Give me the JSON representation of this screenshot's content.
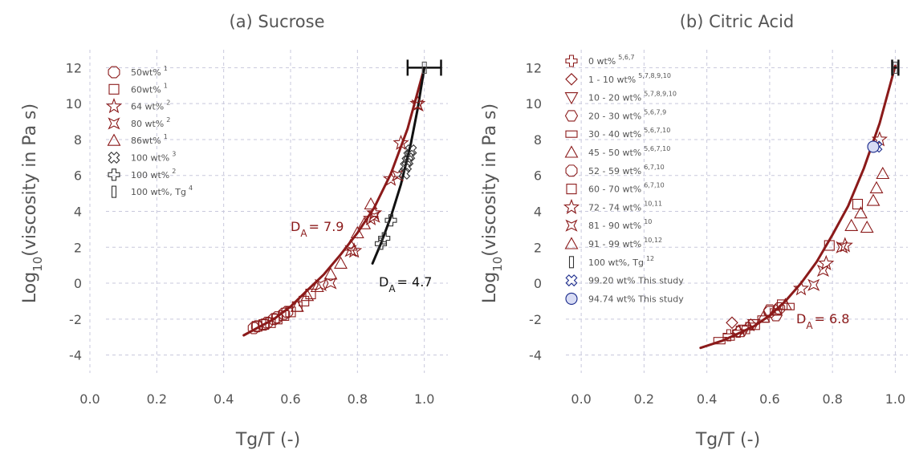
{
  "chart_data": [
    {
      "type": "scatter",
      "title": "(a) Sucrose",
      "xlabel": "Tg/T (-)",
      "ylabel": "Log10(viscosity in Pa s)",
      "xlim": [
        0.0,
        1.08
      ],
      "ylim": [
        -5,
        13
      ],
      "xticks": [
        "0.0",
        "0.2",
        "0.4",
        "0.6",
        "0.8",
        "1.0"
      ],
      "yticks": [
        "-4",
        "-2",
        "0",
        "2",
        "4",
        "6",
        "8",
        "10",
        "12"
      ],
      "grid": true,
      "legend_position": "top-left",
      "series": [
        {
          "name": "50wt%",
          "sup": "1",
          "marker": "octagon",
          "color": "#8b1a1a",
          "points": [
            [
              0.49,
              -2.5
            ],
            [
              0.5,
              -2.4
            ],
            [
              0.52,
              -2.3
            ],
            [
              0.53,
              -2.2
            ],
            [
              0.55,
              -2.0
            ],
            [
              0.56,
              -1.9
            ],
            [
              0.58,
              -1.7
            ],
            [
              0.59,
              -1.6
            ]
          ]
        },
        {
          "name": "60wt%",
          "sup": "1",
          "marker": "square",
          "color": "#8b1a1a",
          "points": [
            [
              0.5,
              -2.4
            ],
            [
              0.52,
              -2.3
            ],
            [
              0.54,
              -2.2
            ],
            [
              0.56,
              -2.0
            ],
            [
              0.58,
              -1.8
            ],
            [
              0.6,
              -1.6
            ],
            [
              0.62,
              -1.3
            ],
            [
              0.64,
              -1.0
            ],
            [
              0.66,
              -0.6
            ]
          ]
        },
        {
          "name": "64 wt%",
          "sup": "2",
          "marker": "star",
          "color": "#8b1a1a",
          "points": [
            [
              0.79,
              1.8
            ],
            [
              0.84,
              3.6
            ],
            [
              0.85,
              3.9
            ],
            [
              0.9,
              5.8
            ],
            [
              0.93,
              7.8
            ],
            [
              0.98,
              10.0
            ]
          ]
        },
        {
          "name": "80 wt%",
          "sup": "2",
          "marker": "star4",
          "color": "#8b1a1a",
          "points": [
            [
              0.69,
              -0.1
            ],
            [
              0.72,
              0.0
            ],
            [
              0.78,
              1.8
            ],
            [
              0.85,
              3.7
            ],
            [
              0.92,
              6.0
            ],
            [
              0.98,
              9.9
            ]
          ]
        },
        {
          "name": "86wt%",
          "sup": "1",
          "marker": "triangle",
          "color": "#8b1a1a",
          "points": [
            [
              0.62,
              -1.3
            ],
            [
              0.65,
              -0.7
            ],
            [
              0.68,
              -0.2
            ],
            [
              0.72,
              0.5
            ],
            [
              0.75,
              1.1
            ],
            [
              0.78,
              2.1
            ],
            [
              0.8,
              2.8
            ],
            [
              0.82,
              3.3
            ],
            [
              0.84,
              4.4
            ]
          ]
        },
        {
          "name": "100 wt%",
          "sup": "3",
          "marker": "x",
          "color": "#333333",
          "points": [
            [
              0.94,
              6.1
            ],
            [
              0.945,
              6.5
            ],
            [
              0.95,
              6.8
            ],
            [
              0.955,
              7.1
            ],
            [
              0.96,
              7.4
            ]
          ]
        },
        {
          "name": "100 wt%",
          "sup": "2",
          "marker": "plus",
          "color": "#333333",
          "points": [
            [
              0.87,
              2.2
            ],
            [
              0.88,
              2.5
            ],
            [
              0.9,
              3.5
            ]
          ]
        },
        {
          "name": "100 wt%, Tg",
          "sup": "4",
          "marker": "bar",
          "color": "#333333",
          "points": [
            [
              1.0,
              12.0
            ]
          ]
        }
      ],
      "fits": [
        {
          "label": "D",
          "sub": "A",
          "value": "= 7.9",
          "color": "#8b1a1a",
          "points": [
            [
              0.46,
              -2.9
            ],
            [
              0.5,
              -2.5
            ],
            [
              0.55,
              -2.0
            ],
            [
              0.6,
              -1.3
            ],
            [
              0.65,
              -0.4
            ],
            [
              0.7,
              0.5
            ],
            [
              0.75,
              1.6
            ],
            [
              0.8,
              2.8
            ],
            [
              0.85,
              4.2
            ],
            [
              0.9,
              6.1
            ],
            [
              0.95,
              8.6
            ],
            [
              1.0,
              12.0
            ]
          ]
        },
        {
          "label": "D",
          "sub": "A",
          "value": "= 4.7",
          "color": "#111111",
          "points": [
            [
              0.845,
              1.1
            ],
            [
              0.87,
              2.2
            ],
            [
              0.9,
              3.7
            ],
            [
              0.93,
              5.5
            ],
            [
              0.96,
              7.8
            ],
            [
              0.98,
              9.7
            ],
            [
              1.0,
              12.0
            ]
          ]
        }
      ],
      "xerror": {
        "x": 1.0,
        "y": 12.0,
        "xmin": 0.95,
        "xmax": 1.05
      }
    },
    {
      "type": "scatter",
      "title": "(b) Citric Acid",
      "xlabel": "Tg/T (-)",
      "ylabel": "Log10(viscosity in Pa s)",
      "xlim": [
        -0.1,
        1.05
      ],
      "ylim": [
        -5,
        13
      ],
      "xticks": [
        "0.0",
        "0.2",
        "0.4",
        "0.6",
        "0.8",
        "1.0"
      ],
      "yticks": [
        "-4",
        "-2",
        "0",
        "2",
        "4",
        "6",
        "8",
        "10",
        "12"
      ],
      "grid": true,
      "legend_position": "top-left",
      "series": [
        {
          "name": "0 wt%",
          "sup": "5,6,7",
          "marker": "plus",
          "color": "#8b1a1a",
          "points": [
            [
              0.47,
              -2.9
            ],
            [
              0.5,
              -2.7
            ],
            [
              0.53,
              -2.5
            ]
          ]
        },
        {
          "name": "1 - 10 wt%",
          "sup": "5,7,8,9,10",
          "marker": "diamond",
          "color": "#8b1a1a",
          "points": [
            [
              0.48,
              -2.2
            ],
            [
              0.5,
              -2.7
            ],
            [
              0.54,
              -2.3
            ]
          ]
        },
        {
          "name": "10 - 20 wt%",
          "sup": "5,7,8,9,10",
          "marker": "tridown",
          "color": "#8b1a1a",
          "points": [
            [
              0.52,
              -2.6
            ],
            [
              0.55,
              -2.3
            ]
          ]
        },
        {
          "name": "20 - 30 wt%",
          "sup": "5,6,7,9",
          "marker": "hexagon",
          "color": "#8b1a1a",
          "points": [
            [
              0.6,
              -1.5
            ],
            [
              0.62,
              -1.8
            ]
          ]
        },
        {
          "name": "30 - 40 wt%",
          "sup": "5,6,7,10",
          "marker": "rect",
          "color": "#8b1a1a",
          "points": [
            [
              0.44,
              -3.2
            ],
            [
              0.47,
              -3.0
            ],
            [
              0.5,
              -2.8
            ],
            [
              0.55,
              -2.4
            ],
            [
              0.58,
              -2.0
            ],
            [
              0.62,
              -1.6
            ],
            [
              0.66,
              -1.3
            ]
          ]
        },
        {
          "name": "45 - 50 wt%",
          "sup": "5,6,7,10",
          "marker": "triangle",
          "color": "#8b1a1a",
          "points": [
            [
              0.58,
              -1.9
            ],
            [
              0.62,
              -1.5
            ],
            [
              0.65,
              -1.2
            ]
          ]
        },
        {
          "name": "52 - 59 wt%",
          "sup": "6,7,10",
          "marker": "octagon",
          "color": "#8b1a1a",
          "points": [
            [
              0.6,
              -1.6
            ],
            [
              0.63,
              -1.4
            ]
          ]
        },
        {
          "name": "60 - 70 wt%",
          "sup": "6,7,10",
          "marker": "square",
          "color": "#8b1a1a",
          "points": [
            [
              0.64,
              -1.2
            ],
            [
              0.79,
              2.1
            ],
            [
              0.88,
              4.4
            ]
          ]
        },
        {
          "name": "72 - 74 wt%",
          "sup": "10,11",
          "marker": "star",
          "color": "#8b1a1a",
          "points": [
            [
              0.7,
              -0.3
            ],
            [
              0.78,
              1.1
            ],
            [
              0.84,
              2.1
            ],
            [
              0.95,
              8.0
            ]
          ]
        },
        {
          "name": "81 - 90 wt%",
          "sup": "10",
          "marker": "star4",
          "color": "#8b1a1a",
          "points": [
            [
              0.74,
              -0.1
            ],
            [
              0.77,
              0.7
            ],
            [
              0.83,
              2.0
            ]
          ]
        },
        {
          "name": "91 - 99 wt%",
          "sup": "10,12",
          "marker": "triangle",
          "color": "#8b1a1a",
          "points": [
            [
              0.86,
              3.2
            ],
            [
              0.89,
              3.9
            ],
            [
              0.91,
              3.1
            ],
            [
              0.93,
              4.6
            ],
            [
              0.94,
              5.3
            ],
            [
              0.96,
              6.1
            ]
          ]
        },
        {
          "name": "100 wt%, Tg",
          "sup": "12",
          "marker": "bar",
          "color": "#111111",
          "points": [
            [
              1.0,
              12.0
            ]
          ]
        },
        {
          "name": "99.20 wt% This study",
          "sup": "",
          "marker": "x",
          "color": "#1a2a8b",
          "points": [
            [
              0.94,
              7.6
            ]
          ]
        },
        {
          "name": "94.74 wt% This study",
          "sup": "",
          "marker": "circle",
          "color": "#1a2a8b",
          "points": [
            [
              0.93,
              7.6
            ]
          ]
        }
      ],
      "fits": [
        {
          "label": "D",
          "sub": "A",
          "value": "= 6.8",
          "color": "#8b1a1a",
          "points": [
            [
              0.38,
              -3.6
            ],
            [
              0.45,
              -3.2
            ],
            [
              0.5,
              -2.8
            ],
            [
              0.55,
              -2.4
            ],
            [
              0.6,
              -1.8
            ],
            [
              0.65,
              -1.0
            ],
            [
              0.7,
              0.0
            ],
            [
              0.75,
              1.2
            ],
            [
              0.8,
              2.7
            ],
            [
              0.85,
              4.3
            ],
            [
              0.9,
              6.4
            ],
            [
              0.95,
              8.9
            ],
            [
              1.0,
              12.1
            ]
          ]
        }
      ],
      "xerror": {
        "x": 1.0,
        "y": 12.0,
        "xmin": 0.99,
        "xmax": 1.01
      }
    }
  ]
}
